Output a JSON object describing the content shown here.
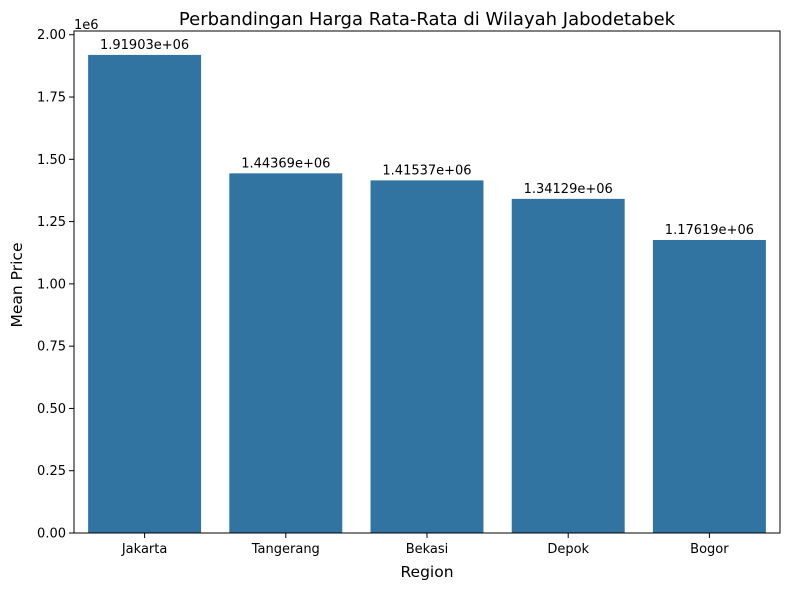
{
  "chart_data": {
    "type": "bar",
    "title": "Perbandingan Harga Rata-Rata di Wilayah Jabodetabek",
    "xlabel": "Region",
    "ylabel": "Mean Price",
    "y_offset_label": "1e6",
    "categories": [
      "Jakarta",
      "Tangerang",
      "Bekasi",
      "Depok",
      "Bogor"
    ],
    "values": [
      1919030,
      1443690,
      1415370,
      1341290,
      1176190
    ],
    "data_labels": [
      "1.91903e+06",
      "1.44369e+06",
      "1.41537e+06",
      "1.34129e+06",
      "1.17619e+06"
    ],
    "ylim": [
      0,
      2015000
    ],
    "y_ticks": [
      0,
      250000,
      500000,
      750000,
      1000000,
      1250000,
      1500000,
      1750000,
      2000000
    ],
    "y_tick_labels": [
      "0.00",
      "0.25",
      "0.50",
      "0.75",
      "1.00",
      "1.25",
      "1.50",
      "1.75",
      "2.00"
    ],
    "bar_color": "#3274a1",
    "grid": false,
    "legend": "none"
  }
}
